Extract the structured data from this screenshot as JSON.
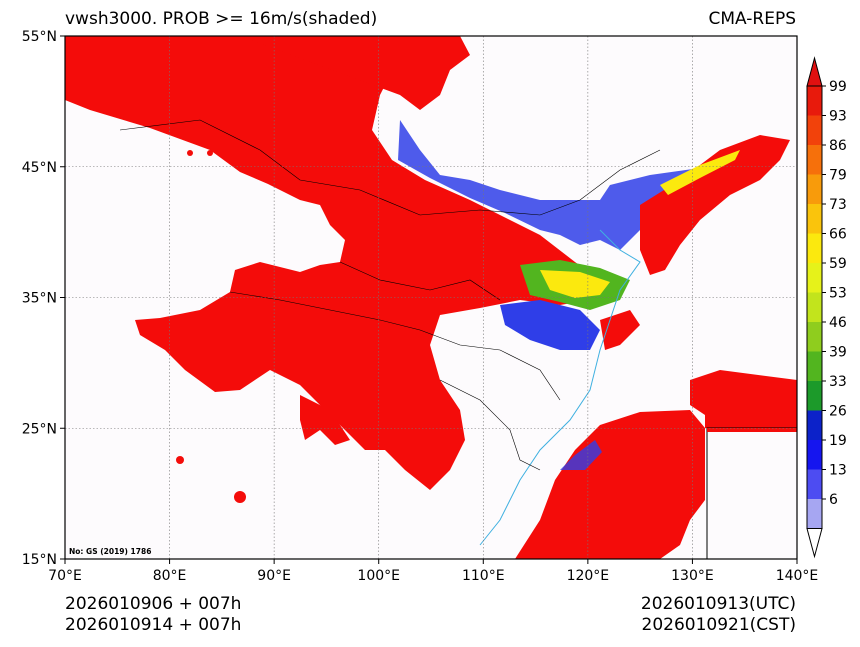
{
  "header": {
    "title": "vwsh3000. PROB >= 16m/s(shaded)",
    "model": "CMA-REPS"
  },
  "map": {
    "lon_range": [
      70,
      140
    ],
    "lat_range": [
      15,
      55
    ],
    "lon_ticks": [
      "70°E",
      "80°E",
      "90°E",
      "100°E",
      "110°E",
      "120°E",
      "130°E",
      "140°E"
    ],
    "lat_ticks": [
      "55°N",
      "45°N",
      "35°N",
      "25°N",
      "15°N"
    ],
    "map_note": "No: GS (2019) 1786"
  },
  "colorbar": {
    "labels": [
      "99",
      "93",
      "86",
      "79",
      "73",
      "66",
      "59",
      "53",
      "46",
      "39",
      "33",
      "26",
      "19",
      "13",
      "6"
    ],
    "colors": [
      "#e81a0c",
      "#f2420b",
      "#f6700b",
      "#f89b0b",
      "#fac40c",
      "#fbe90e",
      "#e6f21a",
      "#c2e41c",
      "#8fcd1e",
      "#52b51f",
      "#1c9a2a",
      "#0c22c9",
      "#1515ef",
      "#4d4cf2",
      "#a6a6f2"
    ],
    "over_color": "#e01010",
    "under_color": "#ffffff"
  },
  "footer": {
    "init_utc": "2026010906  +  007h",
    "init_cst": "2026010914  +  007h",
    "valid_utc": "2026010913(UTC)",
    "valid_cst": "2026010921(CST)"
  },
  "colors": {
    "prob_high": "#f40c0a",
    "prob_low": "#2f3ee8",
    "land_bg": "#fdfbfd",
    "coast": "#3fb0e0"
  }
}
